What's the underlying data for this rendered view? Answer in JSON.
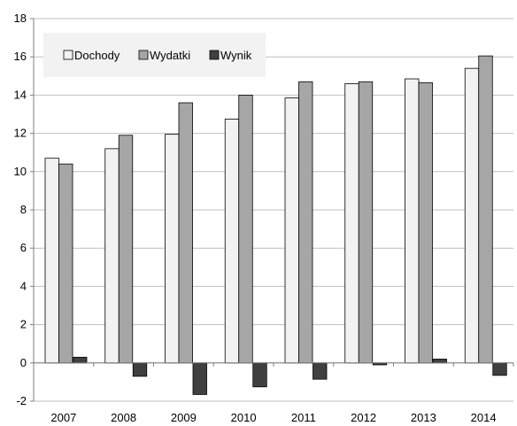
{
  "chart_data": {
    "type": "bar",
    "categories": [
      "2007",
      "2008",
      "2009",
      "2010",
      "2011",
      "2012",
      "2013",
      "2014"
    ],
    "series": [
      {
        "name": "Dochody",
        "color": "#f2f2f2",
        "values": [
          10.7,
          11.2,
          11.95,
          12.75,
          13.85,
          14.6,
          14.85,
          15.4
        ]
      },
      {
        "name": "Wydatki",
        "color": "#a6a6a6",
        "values": [
          10.4,
          11.9,
          13.6,
          14.0,
          14.7,
          14.7,
          14.65,
          16.05
        ]
      },
      {
        "name": "Wynik",
        "color": "#404040",
        "values": [
          0.3,
          -0.7,
          -1.65,
          -1.25,
          -0.85,
          -0.1,
          0.2,
          -0.65
        ]
      }
    ],
    "ylim": [
      -2,
      18
    ],
    "yticks": [
      "18",
      "16",
      "14",
      "12",
      "10",
      "8",
      "6",
      "4",
      "2",
      "0",
      "-2"
    ],
    "ytick_values": [
      18,
      16,
      14,
      12,
      10,
      8,
      6,
      4,
      2,
      0,
      -2
    ],
    "grid": true,
    "legend_position": "top-left",
    "title": "",
    "xlabel": "",
    "ylabel": ""
  }
}
